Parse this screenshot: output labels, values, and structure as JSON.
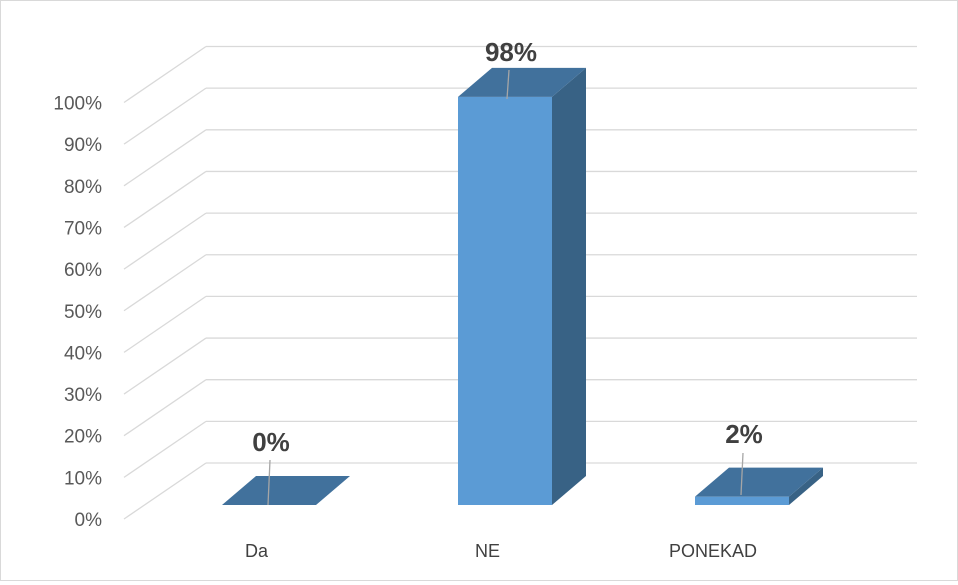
{
  "chart_data": {
    "type": "bar",
    "style": "3d-column",
    "categories": [
      "Da",
      "NE",
      "PONEKAD"
    ],
    "values": [
      0,
      98,
      2
    ],
    "data_labels": [
      "0%",
      "98%",
      "2%"
    ],
    "ylim": [
      0,
      100
    ],
    "yticks": [
      "0%",
      "10%",
      "20%",
      "30%",
      "40%",
      "50%",
      "60%",
      "70%",
      "80%",
      "90%",
      "100%"
    ],
    "grid": true,
    "legend": "none",
    "colors": {
      "bar_front": "#5b9bd5",
      "bar_top": "#41719c",
      "bar_side": "#386285",
      "grid": "#d9d9d9"
    }
  }
}
